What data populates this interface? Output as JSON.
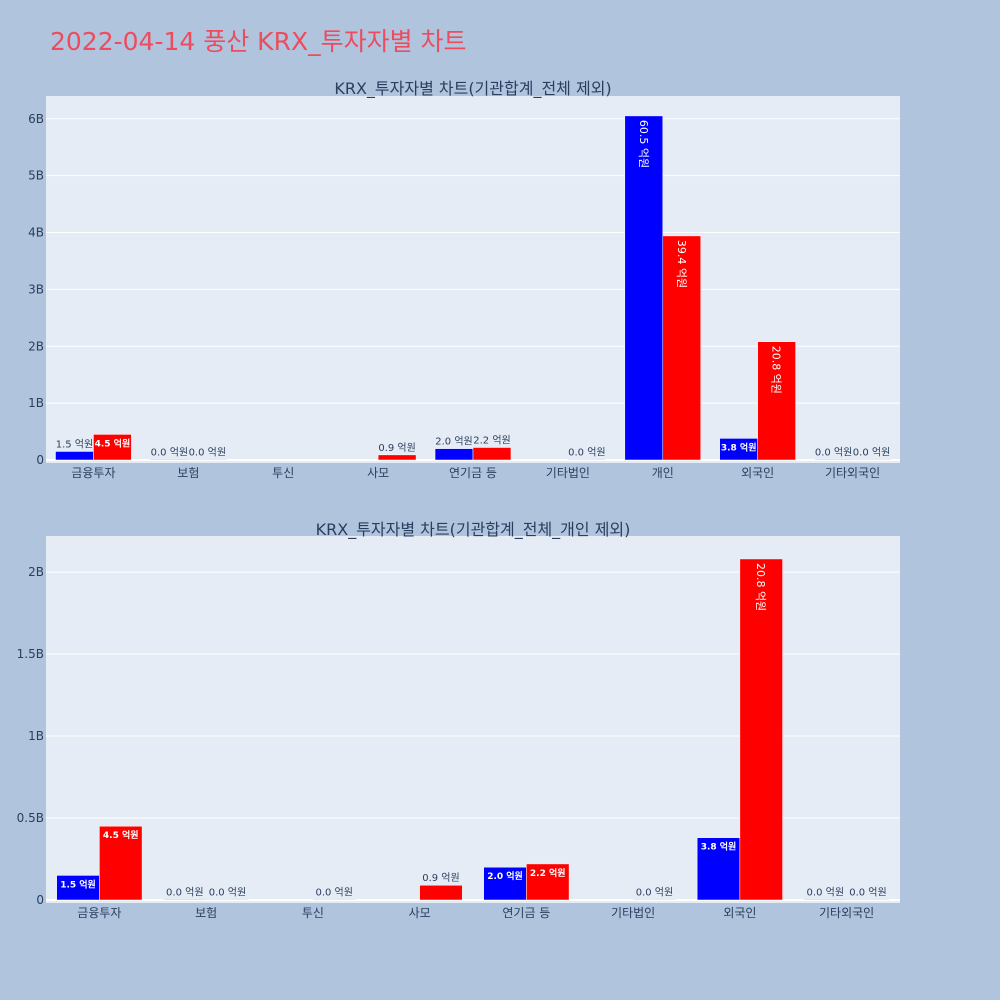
{
  "page_title": "2022-04-14 풍산 KRX_투자자별 차트",
  "colors": {
    "background": "#b0c4de",
    "plot_bg": "#e5ecf6",
    "title": "#ee4b5e",
    "series_a": "#0000ff",
    "series_b": "#ff0000"
  },
  "chart_data": [
    {
      "type": "bar",
      "title": "KRX_투자자별 차트(기관합계_전체 제외)",
      "categories": [
        "금융투자",
        "보험",
        "투신",
        "사모",
        "연기금 등",
        "기타법인",
        "개인",
        "외국인",
        "기타외국인"
      ],
      "ylim": [
        0,
        6400000000
      ],
      "yticks": [
        0,
        1000000000,
        2000000000,
        3000000000,
        4000000000,
        5000000000,
        6000000000
      ],
      "ytick_labels": [
        "0",
        "1B",
        "2B",
        "3B",
        "4B",
        "5B",
        "6B"
      ],
      "grid": true,
      "series": [
        {
          "color": "#0000ff",
          "values": [
            150000000,
            0,
            null,
            null,
            200000000,
            null,
            6050000000,
            380000000,
            0
          ],
          "labels": [
            "1.5 억원",
            "0.0 억원",
            "",
            "",
            "2.0 억원",
            "",
            "60.5 억원",
            "3.8 억원",
            "0.0 억원"
          ]
        },
        {
          "color": "#ff0000",
          "values": [
            450000000,
            0,
            null,
            90000000,
            220000000,
            0,
            3940000000,
            2080000000,
            0
          ],
          "labels": [
            "4.5 억원",
            "0.0 억원",
            "",
            "0.9 억원",
            "2.2 억원",
            "0.0 억원",
            "39.4 억원",
            "20.8 억원",
            "0.0 억원"
          ]
        }
      ]
    },
    {
      "type": "bar",
      "title": "KRX_투자자별 차트(기관합계_전체_개인 제외)",
      "categories": [
        "금융투자",
        "보험",
        "투신",
        "사모",
        "연기금 등",
        "기타법인",
        "외국인",
        "기타외국인"
      ],
      "ylim": [
        0,
        2220000000
      ],
      "yticks": [
        0,
        500000000,
        1000000000,
        1500000000,
        2000000000
      ],
      "ytick_labels": [
        "0",
        "0.5B",
        "1B",
        "1.5B",
        "2B"
      ],
      "grid": true,
      "series": [
        {
          "color": "#0000ff",
          "values": [
            150000000,
            0,
            null,
            null,
            200000000,
            null,
            380000000,
            0
          ],
          "labels": [
            "1.5 억원",
            "0.0 억원",
            "",
            "",
            "2.0 억원",
            "",
            "3.8 억원",
            "0.0 억원"
          ]
        },
        {
          "color": "#ff0000",
          "values": [
            450000000,
            0,
            0,
            90000000,
            220000000,
            0,
            2080000000,
            0
          ],
          "labels": [
            "4.5 억원",
            "0.0 억원",
            "0.0 억원",
            "0.9 억원",
            "2.2 억원",
            "0.0 억원",
            "20.8 억원",
            "0.0 억원"
          ]
        }
      ]
    }
  ]
}
